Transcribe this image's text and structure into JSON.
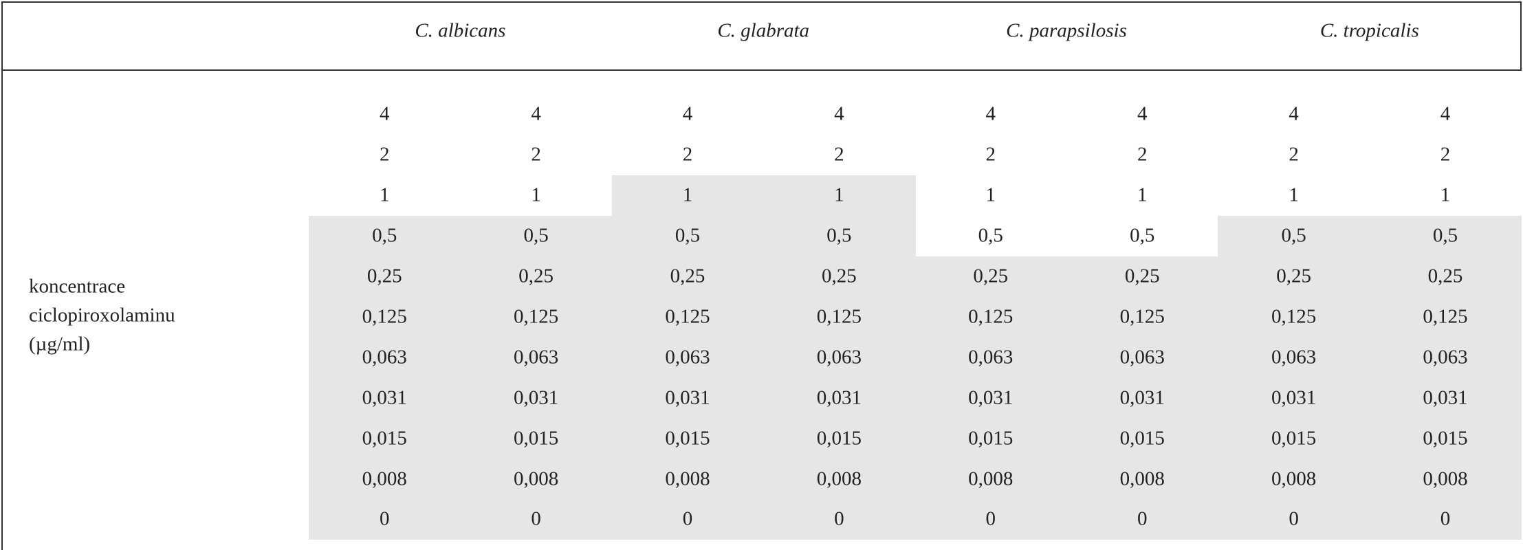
{
  "table": {
    "columns": [
      "C. albicans",
      "C. glabrata",
      "C. parapsilosis",
      "C. tropicalis"
    ],
    "row_label": [
      "koncentrace",
      "ciclopiroxolaminu",
      "(µg/ml)"
    ],
    "rows": [
      [
        "4",
        "4",
        "4",
        "4",
        "4",
        "4",
        "4",
        "4"
      ],
      [
        "2",
        "2",
        "2",
        "2",
        "2",
        "2",
        "2",
        "2"
      ],
      [
        "1",
        "1",
        "1",
        "1",
        "1",
        "1",
        "1",
        "1"
      ],
      [
        "0,5",
        "0,5",
        "0,5",
        "0,5",
        "0,5",
        "0,5",
        "0,5",
        "0,5"
      ],
      [
        "0,25",
        "0,25",
        "0,25",
        "0,25",
        "0,25",
        "0,25",
        "0,25",
        "0,25"
      ],
      [
        "0,125",
        "0,125",
        "0,125",
        "0,125",
        "0,125",
        "0,125",
        "0,125",
        "0,125"
      ],
      [
        "0,063",
        "0,063",
        "0,063",
        "0,063",
        "0,063",
        "0,063",
        "0,063",
        "0,063"
      ],
      [
        "0,031",
        "0,031",
        "0,031",
        "0,031",
        "0,031",
        "0,031",
        "0,031",
        "0,031"
      ],
      [
        "0,015",
        "0,015",
        "0,015",
        "0,015",
        "0,015",
        "0,015",
        "0,015",
        "0,015"
      ],
      [
        "0,008",
        "0,008",
        "0,008",
        "0,008",
        "0,008",
        "0,008",
        "0,008",
        "0,008"
      ],
      [
        "0",
        "0",
        "0",
        "0",
        "0",
        "0",
        "0",
        "0"
      ]
    ]
  }
}
